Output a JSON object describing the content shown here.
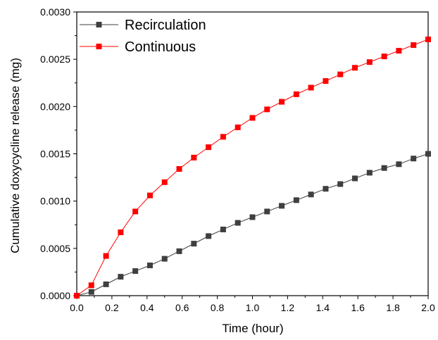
{
  "chart_data": {
    "type": "line",
    "xlabel": "Time (hour)",
    "ylabel": "Cumulative doxycycline release (mg)",
    "xlim": [
      0,
      2.0
    ],
    "ylim": [
      0,
      0.003
    ],
    "xticks": [
      "0.0",
      "0.2",
      "0.4",
      "0.6",
      "0.8",
      "1.0",
      "1.2",
      "1.4",
      "1.6",
      "1.8",
      "2.0"
    ],
    "yticks": [
      "0.0000",
      "0.0005",
      "0.0010",
      "0.0015",
      "0.0020",
      "0.0025",
      "0.0030"
    ],
    "grid": false,
    "legend": "top-left",
    "x": [
      0,
      0.0833,
      0.1667,
      0.25,
      0.3333,
      0.4167,
      0.5,
      0.5833,
      0.6667,
      0.75,
      0.8333,
      0.9167,
      1.0,
      1.0833,
      1.1667,
      1.25,
      1.3333,
      1.4167,
      1.5,
      1.5833,
      1.6667,
      1.75,
      1.8333,
      1.9167,
      2.0
    ],
    "series": [
      {
        "name": "Recirculation",
        "color": "#3f3f3f",
        "marker": "square",
        "values": [
          0,
          4e-05,
          0.00012,
          0.0002,
          0.00026,
          0.00032,
          0.00039,
          0.00047,
          0.00055,
          0.00063,
          0.0007,
          0.00077,
          0.00083,
          0.00089,
          0.00095,
          0.00101,
          0.00107,
          0.00113,
          0.00118,
          0.00124,
          0.0013,
          0.00135,
          0.00139,
          0.00145,
          0.0015
        ]
      },
      {
        "name": "Continuous",
        "color": "#ff0000",
        "marker": "square",
        "values": [
          0,
          0.00011,
          0.00042,
          0.00067,
          0.00089,
          0.00106,
          0.0012,
          0.00134,
          0.00146,
          0.00157,
          0.00168,
          0.00178,
          0.00188,
          0.00197,
          0.00205,
          0.00213,
          0.0022,
          0.00227,
          0.00234,
          0.00241,
          0.00247,
          0.00253,
          0.00259,
          0.00265,
          0.00271
        ]
      }
    ]
  }
}
